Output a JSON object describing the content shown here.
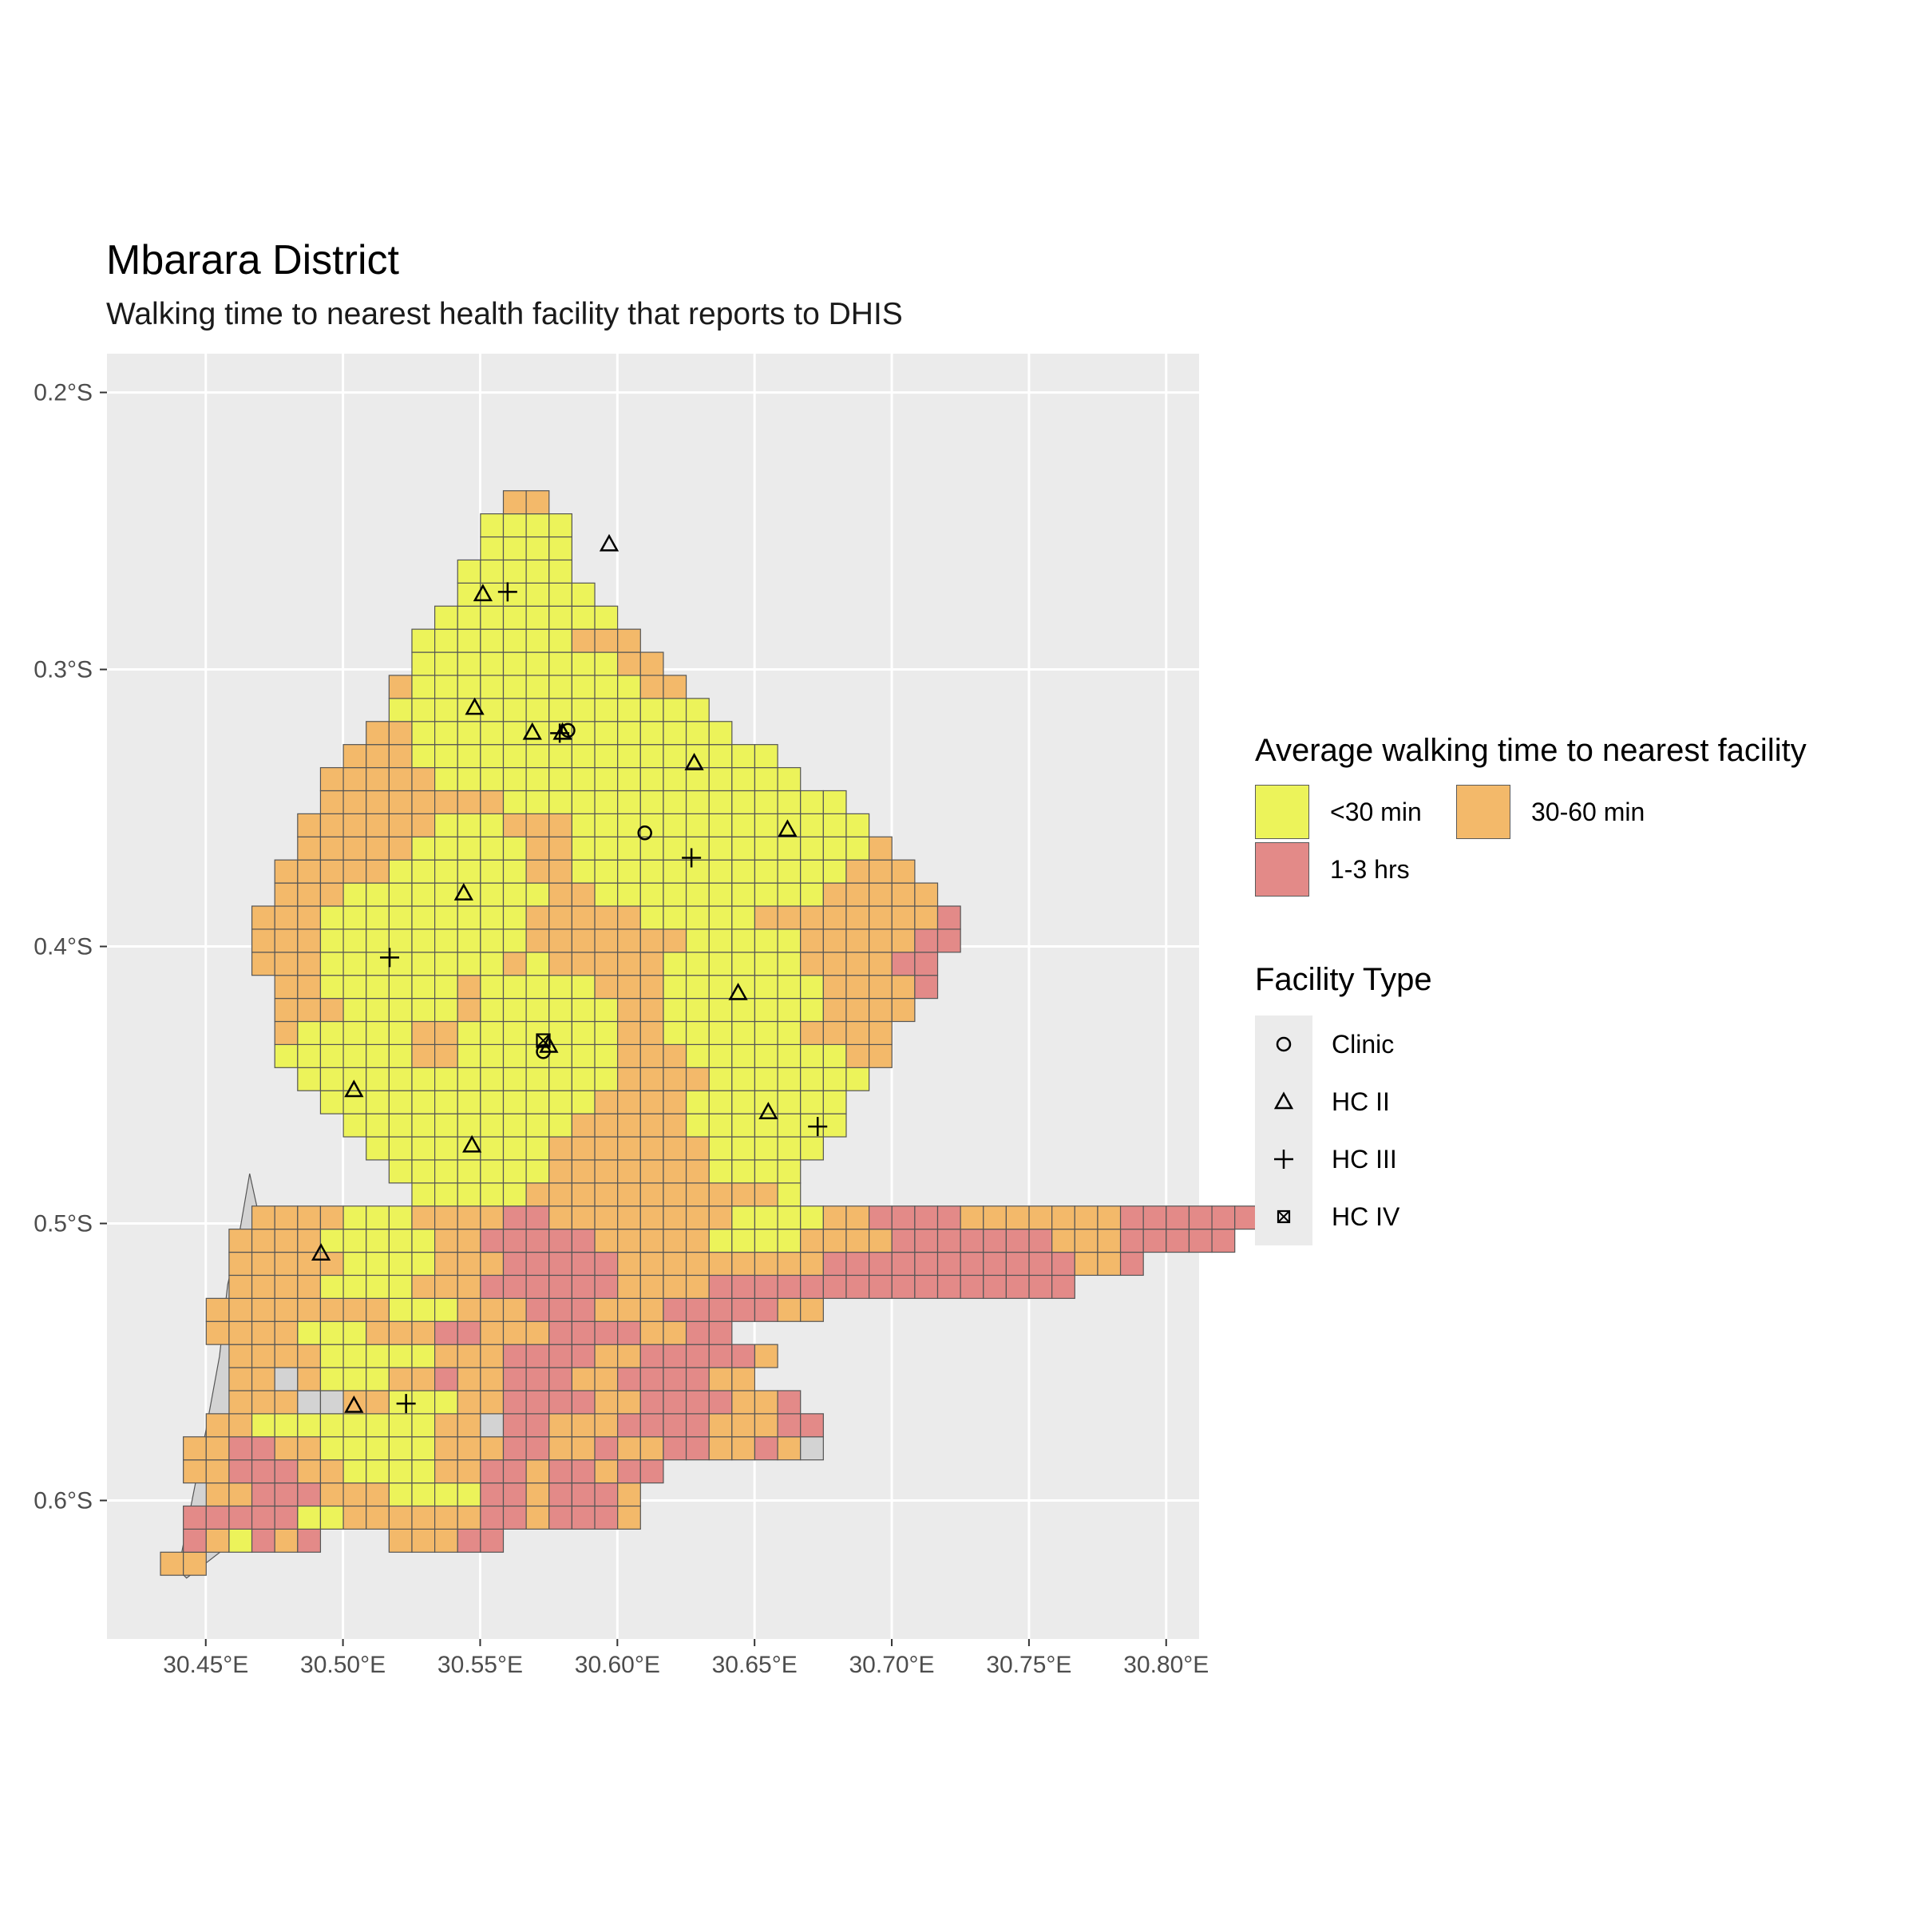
{
  "title": "Mbarara District",
  "subtitle": "Walking time to nearest health facility that reports to DHIS",
  "x_axis": {
    "ticks": [
      30.45,
      30.5,
      30.55,
      30.6,
      30.65,
      30.7,
      30.75,
      30.8
    ],
    "labels": [
      "30.45°E",
      "30.50°E",
      "30.55°E",
      "30.60°E",
      "30.65°E",
      "30.70°E",
      "30.75°E",
      "30.80°E"
    ],
    "range": [
      30.414,
      30.812
    ]
  },
  "y_axis": {
    "ticks": [
      -0.2,
      -0.3,
      -0.4,
      -0.5,
      -0.6
    ],
    "labels": [
      "0.2°S",
      "0.3°S",
      "0.4°S",
      "0.5°S",
      "0.6°S"
    ],
    "range": [
      -0.186,
      -0.65
    ]
  },
  "colors": {
    "panel": "#ebebeb",
    "grid": "#ffffff",
    "lt30": "#ecf35a",
    "30to60": "#f3b96a",
    "1to3": "#e38a88",
    "nodata": "#d3d3d3",
    "cell_border": "#555555"
  },
  "legend_fill": {
    "title": "Average walking time to nearest facility",
    "items": [
      {
        "key": "lt30",
        "label": "<30 min"
      },
      {
        "key": "30to60",
        "label": "30-60 min"
      },
      {
        "key": "1to3",
        "label": "1-3 hrs"
      }
    ]
  },
  "legend_shape": {
    "title": "Facility Type",
    "items": [
      {
        "shape": "circle",
        "label": "Clinic"
      },
      {
        "shape": "triangle",
        "label": "HC II"
      },
      {
        "shape": "plus",
        "label": "HC III"
      },
      {
        "shape": "boxx",
        "label": "HC IV"
      }
    ]
  },
  "grid_origin": {
    "lon": 30.4335,
    "lat": -0.627,
    "cell_lon": 0.00833,
    "cell_lat": 0.00833
  },
  "cell_rows": [
    {
      "row": 0,
      "spans": [
        "0-1:o"
      ]
    },
    {
      "row": 1,
      "spans": [
        "1:r",
        "2:o",
        "3:y",
        "4:r",
        "5:o",
        "6:r",
        "10:o",
        "11-12:o",
        "13-14:r"
      ]
    },
    {
      "row": 2,
      "spans": [
        "1-5:r",
        "6-7:y",
        "8-13:o",
        "14-15:r",
        "16:o",
        "17-19:r",
        "20:o"
      ]
    },
    {
      "row": 3,
      "spans": [
        "2-3:o",
        "4-6:r",
        "7-9:o",
        "10-13:y",
        "14-15:r",
        "16:o",
        "17-19:r",
        "20:o"
      ]
    },
    {
      "row": 4,
      "spans": [
        "1-2:o",
        "3-5:r",
        "6-7:o",
        "8-11:y",
        "12-13:o",
        "14-15:r",
        "16:o",
        "17-18:r",
        "19:o",
        "20-21:r"
      ]
    },
    {
      "row": 5,
      "spans": [
        "1-2:o",
        "3-4:r",
        "5-6:o",
        "7-11:y",
        "12-14:o",
        "15-16:r",
        "17-18:o",
        "19:r",
        "20-21:o",
        "22-23:r",
        "24-25:o",
        "26:r",
        "27:o",
        "28:n"
      ]
    },
    {
      "row": 6,
      "spans": [
        "2-3:o",
        "4-7:y",
        "8-11:y",
        "12-13:o",
        "14:n",
        "15-16:r",
        "17-19:o",
        "20-23:r",
        "24-26:o",
        "27-28:r"
      ]
    },
    {
      "row": 7,
      "spans": [
        "3-5:o",
        "6-7:n",
        "8-9:o",
        "10-12:y",
        "13-14:o",
        "15-18:r",
        "19-20:o",
        "21-24:r",
        "25-26:o",
        "27:r"
      ]
    },
    {
      "row": 8,
      "spans": [
        "3-4:o",
        "5:n",
        "6:o",
        "7-9:y",
        "10-11:o",
        "12:r",
        "13-14:o",
        "15-17:r",
        "18-19:o",
        "20-23:r",
        "24-25:o"
      ]
    },
    {
      "row": 9,
      "spans": [
        "3-6:o",
        "7-11:y",
        "12-14:o",
        "15-18:r",
        "19-20:o",
        "21-25:r",
        "26:o"
      ]
    },
    {
      "row": 10,
      "spans": [
        "2-5:o",
        "6-8:y",
        "9-11:o",
        "12-13:r",
        "14-16:o",
        "17-20:r",
        "21-22:o",
        "23-24:r"
      ]
    },
    {
      "row": 11,
      "spans": [
        "2-4:o",
        "5-9:o",
        "10-12:y",
        "13-15:o",
        "16-18:r",
        "19-21:o",
        "22-24:r",
        "25-26:r",
        "27-28:o"
      ]
    },
    {
      "row": 12,
      "spans": [
        "3-6:o",
        "7-10:y",
        "11-13:o",
        "14-19:r",
        "20-23:o",
        "24-28:r",
        "29-31:r",
        "32-35:r",
        "36-39:r"
      ]
    },
    {
      "row": 13,
      "spans": [
        "3-7:o",
        "8-11:y",
        "12-14:o",
        "15-19:r",
        "20-24:o",
        "25-28:o",
        "29-32:r",
        "33-36:r",
        "37-39:r",
        "40-41:o",
        "42:r"
      ]
    },
    {
      "row": 14,
      "spans": [
        "3-6:o",
        "7-11:y",
        "12-13:o",
        "14-18:r",
        "19-23:o",
        "24-27:y",
        "28-31:o",
        "32-34:r",
        "35-38:r",
        "39-41:o",
        "42-43:r",
        "44-45:r",
        "46:r"
      ]
    },
    {
      "row": 15,
      "spans": [
        "4-7:o",
        "8-10:y",
        "11-14:o",
        "15-16:r",
        "17-19:o",
        "20-24:o",
        "25-28:y",
        "29-30:o",
        "31-34:r",
        "35-38:o",
        "39-41:o",
        "42-44:r",
        "45-46:r",
        "47:r"
      ]
    }
  ],
  "facilities": [
    {
      "type": "triangle",
      "lon": 30.597,
      "lat": -0.255
    },
    {
      "type": "triangle",
      "lon": 30.551,
      "lat": -0.273
    },
    {
      "type": "plus",
      "lon": 30.56,
      "lat": -0.272
    },
    {
      "type": "triangle",
      "lon": 30.548,
      "lat": -0.314
    },
    {
      "type": "triangle",
      "lon": 30.569,
      "lat": -0.323
    },
    {
      "type": "plus",
      "lon": 30.579,
      "lat": -0.323
    },
    {
      "type": "circle",
      "lon": 30.582,
      "lat": -0.322
    },
    {
      "type": "triangle",
      "lon": 30.58,
      "lat": -0.323
    },
    {
      "type": "triangle",
      "lon": 30.628,
      "lat": -0.334
    },
    {
      "type": "circle",
      "lon": 30.61,
      "lat": -0.359
    },
    {
      "type": "plus",
      "lon": 30.627,
      "lat": -0.368
    },
    {
      "type": "triangle",
      "lon": 30.662,
      "lat": -0.358
    },
    {
      "type": "triangle",
      "lon": 30.544,
      "lat": -0.381
    },
    {
      "type": "plus",
      "lon": 30.517,
      "lat": -0.404
    },
    {
      "type": "triangle",
      "lon": 30.644,
      "lat": -0.417
    },
    {
      "type": "boxx",
      "lon": 30.573,
      "lat": -0.434
    },
    {
      "type": "circle",
      "lon": 30.573,
      "lat": -0.438
    },
    {
      "type": "triangle",
      "lon": 30.575,
      "lat": -0.436
    },
    {
      "type": "triangle",
      "lon": 30.504,
      "lat": -0.452
    },
    {
      "type": "triangle",
      "lon": 30.655,
      "lat": -0.46
    },
    {
      "type": "plus",
      "lon": 30.673,
      "lat": -0.465
    },
    {
      "type": "triangle",
      "lon": 30.547,
      "lat": -0.472
    },
    {
      "type": "triangle",
      "lon": 30.492,
      "lat": -0.511
    },
    {
      "type": "triangle",
      "lon": 30.504,
      "lat": -0.566
    },
    {
      "type": "plus",
      "lon": 30.523,
      "lat": -0.565
    }
  ]
}
